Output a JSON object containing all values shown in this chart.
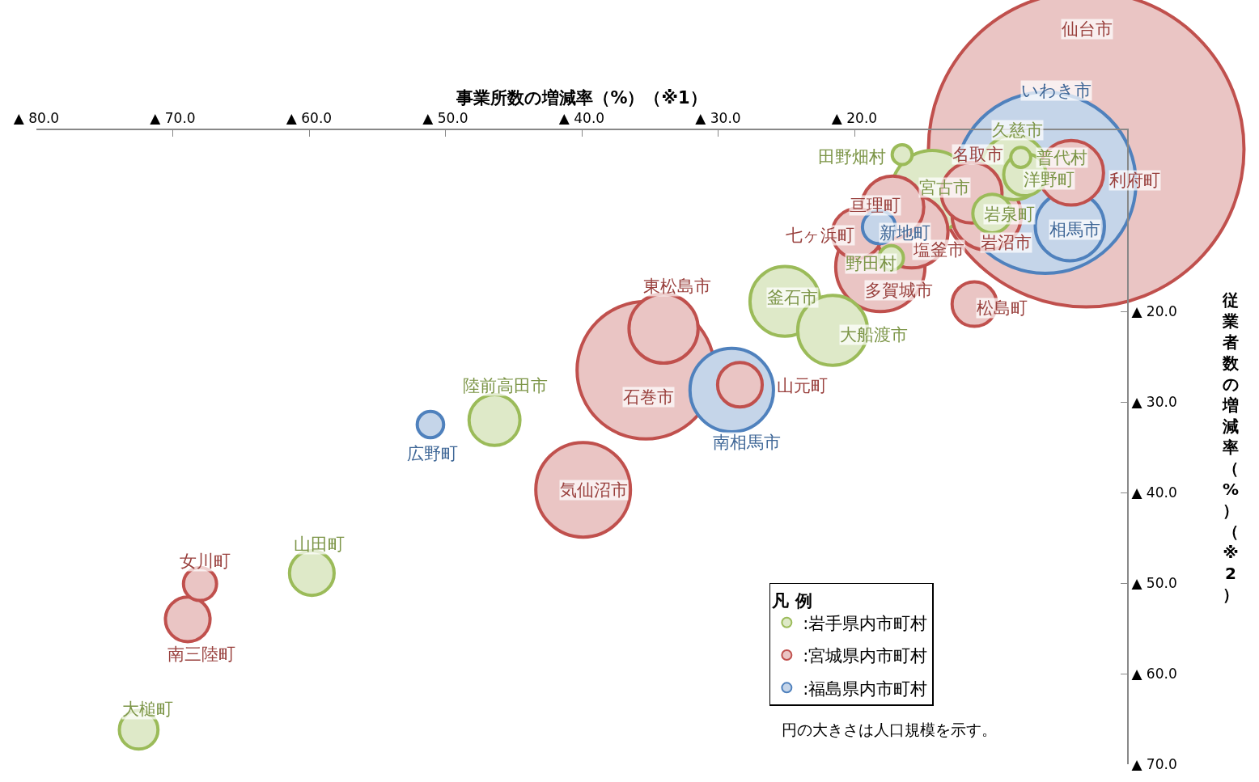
{
  "chart_data": {
    "type": "bubble",
    "xlabel": "事業所数の増減率（%）（※1）",
    "ylabel": "従業者数の増減率（%）（※2）",
    "legend_title": "凡 例",
    "xlim": [
      -80,
      0
    ],
    "ylim": [
      -70,
      0
    ],
    "xticks": [
      {
        "value": -80,
        "label": "▲ 80.0"
      },
      {
        "value": -70,
        "label": "▲ 70.0"
      },
      {
        "value": -60,
        "label": "▲ 60.0"
      },
      {
        "value": -50,
        "label": "▲ 50.0"
      },
      {
        "value": -40,
        "label": "▲ 40.0"
      },
      {
        "value": -30,
        "label": "▲ 30.0"
      },
      {
        "value": -20,
        "label": "▲ 20.0"
      }
    ],
    "yticks": [
      {
        "value": -20,
        "label": "▲ 20.0"
      },
      {
        "value": -30,
        "label": "▲ 30.0"
      },
      {
        "value": -40,
        "label": "▲ 40.0"
      },
      {
        "value": -50,
        "label": "▲ 50.0"
      },
      {
        "value": -60,
        "label": "▲ 60.0"
      },
      {
        "value": -70,
        "label": "▲ 70.0"
      }
    ],
    "legend": "bottom right",
    "series": [
      {
        "name": ":岩手県内市町村",
        "color": "#9bbb59",
        "x": [
          -16.5,
          -14.3,
          -8.3,
          -7.8,
          -7.5,
          -9.9,
          -17.3,
          -25.1,
          -21.6,
          -46.4,
          -59.8,
          -72.5
        ],
        "values": [
          -2.7,
          -6.7,
          -4.1,
          -3.0,
          -4.9,
          -9.2,
          -14.1,
          -18.9,
          -22.1,
          -32.0,
          -48.9,
          -66.2
        ],
        "sizes": [
          0.004,
          0.066,
          0.042,
          0.004,
          0.018,
          0.015,
          0.006,
          0.049,
          0.049,
          0.026,
          0.02,
          0.015
        ]
      },
      {
        "name": ":宮城県内市町村",
        "color": "#c0504d",
        "x": [
          -3.0,
          -11.4,
          -4.1,
          -17.2,
          -19.8,
          -15.8,
          -10.3,
          -18.1,
          -11.2,
          -34.0,
          -35.3,
          -28.4,
          -39.9,
          -68.0,
          -68.9
        ],
        "values": [
          -2.1,
          -6.9,
          -4.7,
          -8.5,
          -11.4,
          -11.2,
          -9.4,
          -15.1,
          -19.2,
          -21.9,
          -26.5,
          -28.1,
          -39.7,
          -50.1,
          -54.0
        ],
        "sizes": [
          1,
          0.037,
          0.042,
          0.039,
          0.025,
          0.053,
          0.048,
          0.08,
          0.02,
          0.048,
          0.19,
          0.02,
          0.09,
          0.011,
          0.02
        ]
      },
      {
        "name": ":福島県内市町村",
        "color": "#4f81bd",
        "x": [
          -6.0,
          -4.2,
          -18.2,
          -29.0,
          -51.1
        ],
        "values": [
          -5.8,
          -10.6,
          -10.7,
          -28.7,
          -32.5
        ],
        "sizes": [
          0.33,
          0.048,
          0.011,
          0.07,
          0.007
        ]
      }
    ],
    "annotations": [
      {
        "text": "田野畑村",
        "x": -16.5,
        "y": -2.7
      },
      {
        "text": "宮古市",
        "x": -14.3,
        "y": -6.7
      },
      {
        "text": "久慈市",
        "x": -8.3,
        "y": -4.1
      },
      {
        "text": "普代村",
        "x": -7.8,
        "y": -3.0
      },
      {
        "text": "洋野町",
        "x": -7.5,
        "y": -4.9
      },
      {
        "text": "岩泉町",
        "x": -9.9,
        "y": -9.2
      },
      {
        "text": "野田村",
        "x": -17.3,
        "y": -14.1
      },
      {
        "text": "釜石市",
        "x": -25.1,
        "y": -18.9
      },
      {
        "text": "大船渡市",
        "x": -21.6,
        "y": -22.1
      },
      {
        "text": "陸前高田市",
        "x": -46.4,
        "y": -32.0
      },
      {
        "text": "山田町",
        "x": -59.8,
        "y": -48.9
      },
      {
        "text": "大槌町",
        "x": -72.5,
        "y": -66.2
      },
      {
        "text": "名取市",
        "x": -11.4,
        "y": -6.9
      },
      {
        "text": "利府町",
        "x": -4.1,
        "y": -4.7
      },
      {
        "text": "亘理町",
        "x": -17.2,
        "y": -8.5
      },
      {
        "text": "七ヶ浜町",
        "x": -19.8,
        "y": -11.4
      },
      {
        "text": "塩釜市",
        "x": -15.8,
        "y": -11.2
      },
      {
        "text": "岩沼市",
        "x": -10.3,
        "y": -9.4
      },
      {
        "text": "多賀城市",
        "x": -18.1,
        "y": -15.1
      },
      {
        "text": "松島町",
        "x": -11.2,
        "y": -19.2
      },
      {
        "text": "東松島市",
        "x": -34.0,
        "y": -21.9
      },
      {
        "text": "石巻市",
        "x": -35.3,
        "y": -26.5
      },
      {
        "text": "山元町",
        "x": -28.4,
        "y": -28.1
      },
      {
        "text": "気仙沼市",
        "x": -39.9,
        "y": -39.7
      },
      {
        "text": "女川町",
        "x": -68.0,
        "y": -50.1
      },
      {
        "text": "南三陸町",
        "x": -68.9,
        "y": -54.0
      },
      {
        "text": "相馬市",
        "x": -4.2,
        "y": -10.6
      },
      {
        "text": "新地町",
        "x": -18.2,
        "y": -10.7
      },
      {
        "text": "南相馬市",
        "x": -29.0,
        "y": -28.7
      },
      {
        "text": "広野町",
        "x": -51.1,
        "y": -32.5
      },
      "仙台市",
      "いわき市",
      "円の大きさは人口規模を示す。"
    ]
  }
}
